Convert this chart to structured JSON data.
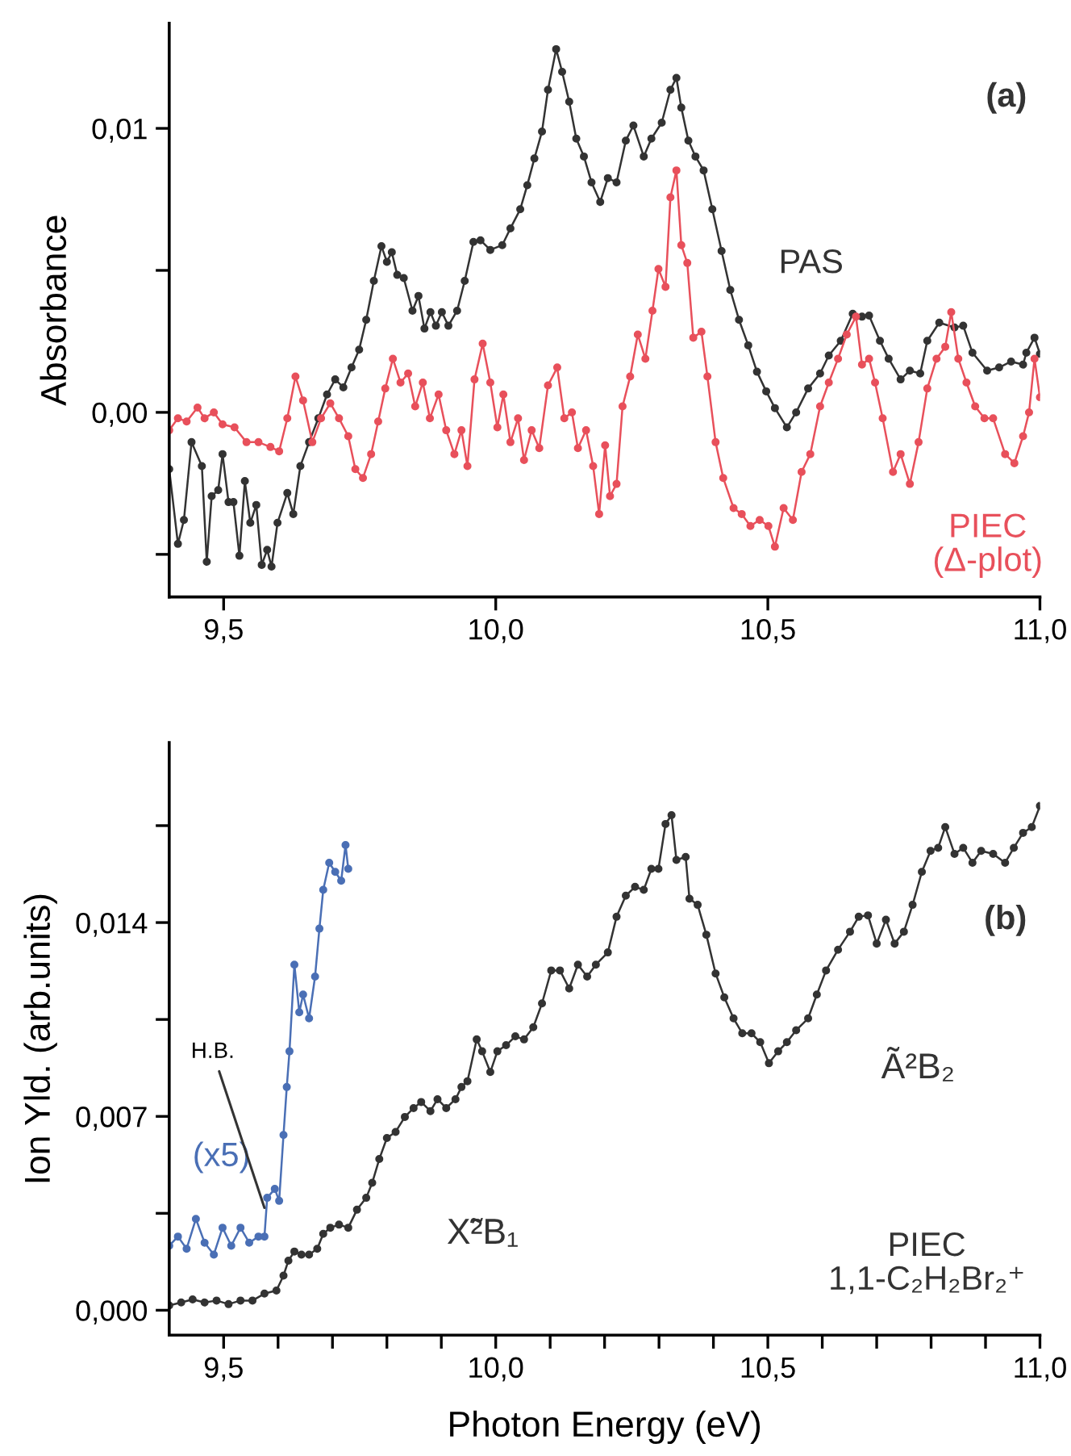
{
  "chart_data": [
    {
      "type": "line",
      "ylabel": "Absorbance",
      "xlim": [
        9.4,
        11.0
      ],
      "ylim": [
        -0.0065,
        0.0137
      ],
      "xticks": [
        {
          "value": 9.5,
          "label": "9,5"
        },
        {
          "value": 10.0,
          "label": "10,0"
        },
        {
          "value": 10.5,
          "label": "10,5"
        },
        {
          "value": 11.0,
          "label": "11,0"
        }
      ],
      "yticks": [
        {
          "value": -0.005,
          "label": null
        },
        {
          "value": 0.0,
          "label": "0,00"
        },
        {
          "value": 0.005,
          "label": null
        },
        {
          "value": 0.01,
          "label": "0,01"
        }
      ],
      "grid": false,
      "legend": false,
      "marker": "circle",
      "line_style": "solid",
      "annotations": [
        "(a)"
      ],
      "series": [
        {
          "name": "PAS",
          "color": "#333333",
          "x": [
            9.4,
            9.416,
            9.427,
            9.441,
            9.46,
            9.469,
            9.478,
            9.49,
            9.498,
            9.509,
            9.518,
            9.529,
            9.539,
            9.549,
            9.56,
            9.57,
            9.58,
            9.588,
            9.599,
            9.617,
            9.628,
            9.641,
            9.657,
            9.674,
            9.69,
            9.705,
            9.72,
            9.735,
            9.749,
            9.762,
            9.776,
            9.79,
            9.8,
            9.809,
            9.819,
            9.831,
            9.847,
            9.858,
            9.869,
            9.88,
            9.89,
            9.901,
            9.913,
            9.929,
            9.943,
            9.959,
            9.972,
            9.99,
            10.012,
            10.027,
            10.045,
            10.058,
            10.071,
            10.085,
            10.096,
            10.111,
            10.122,
            10.135,
            10.148,
            10.162,
            10.176,
            10.192,
            10.206,
            10.222,
            10.239,
            10.253,
            10.272,
            10.286,
            10.305,
            10.321,
            10.332,
            10.341,
            10.354,
            10.367,
            10.382,
            10.398,
            10.415,
            10.431,
            10.447,
            10.464,
            10.48,
            10.497,
            10.513,
            10.535,
            10.552,
            10.574,
            10.596,
            10.612,
            10.634,
            10.656,
            10.673,
            10.686,
            10.706,
            10.722,
            10.744,
            10.761,
            10.78,
            10.793,
            10.815,
            10.843,
            10.859,
            10.876,
            10.903,
            10.925,
            10.947,
            10.969,
            10.975,
            10.99,
            11.0
          ],
          "values": [
            -0.002,
            -0.00463,
            -0.00379,
            -0.00105,
            -0.00189,
            -0.00526,
            -0.00295,
            -0.00274,
            -0.00147,
            -0.00316,
            -0.00316,
            -0.00505,
            -0.00242,
            -0.00389,
            -0.00326,
            -0.00537,
            -0.00484,
            -0.00543,
            -0.00389,
            -0.00284,
            -0.00358,
            -0.00189,
            -0.00105,
            -0.00021,
            0.00063,
            0.00116,
            0.00088,
            0.00158,
            0.00221,
            0.00326,
            0.00463,
            0.00585,
            0.0053,
            0.00564,
            0.00484,
            0.00473,
            0.00358,
            0.0041,
            0.00295,
            0.00353,
            0.00305,
            0.00353,
            0.00305,
            0.00358,
            0.00463,
            0.006,
            0.00606,
            0.00572,
            0.00589,
            0.00648,
            0.00715,
            0.008,
            0.00894,
            0.00989,
            0.01136,
            0.01279,
            0.01199,
            0.01094,
            0.00964,
            0.00901,
            0.0081,
            0.00741,
            0.00825,
            0.0081,
            0.00957,
            0.0101,
            0.00901,
            0.00964,
            0.0102,
            0.01136,
            0.01178,
            0.01073,
            0.00957,
            0.00901,
            0.00852,
            0.00715,
            0.00568,
            0.00431,
            0.00326,
            0.00236,
            0.00143,
            0.00074,
            0.00015,
            -0.00053,
            0.0,
            0.00084,
            0.00137,
            0.002,
            0.00252,
            0.00347,
            0.00337,
            0.00341,
            0.00252,
            0.00189,
            0.00116,
            0.00147,
            0.00137,
            0.00252,
            0.00316,
            0.00299,
            0.00305,
            0.0021,
            0.00147,
            0.00158,
            0.00179,
            0.00168,
            0.0021,
            0.00263,
            0.00206
          ]
        },
        {
          "name": "PIEC\n(Δ-plot)",
          "color": "#e8505b",
          "x": [
            9.4,
            9.416,
            9.432,
            9.452,
            9.465,
            9.482,
            9.498,
            9.52,
            9.542,
            9.564,
            9.586,
            9.602,
            9.617,
            9.632,
            9.646,
            9.663,
            9.679,
            9.696,
            9.712,
            9.729,
            9.742,
            9.756,
            9.771,
            9.784,
            9.797,
            9.811,
            9.825,
            9.839,
            9.852,
            9.866,
            9.879,
            9.895,
            9.909,
            9.924,
            9.937,
            9.948,
            9.961,
            9.976,
            9.99,
            10.003,
            10.014,
            10.027,
            10.041,
            10.052,
            10.066,
            10.08,
            10.096,
            10.113,
            10.126,
            10.14,
            10.151,
            10.166,
            10.179,
            10.19,
            10.201,
            10.21,
            10.222,
            10.233,
            10.247,
            10.261,
            10.275,
            10.288,
            10.299,
            10.312,
            10.321,
            10.332,
            10.341,
            10.352,
            10.363,
            10.378,
            10.389,
            10.404,
            10.418,
            10.437,
            10.452,
            10.468,
            10.485,
            10.501,
            10.513,
            10.529,
            10.546,
            10.562,
            10.578,
            10.596,
            10.612,
            10.629,
            10.645,
            10.662,
            10.673,
            10.686,
            10.697,
            10.711,
            10.73,
            10.744,
            10.761,
            10.777,
            10.793,
            10.81,
            10.826,
            10.837,
            10.85,
            10.865,
            10.881,
            10.898,
            10.914,
            10.936,
            10.953,
            10.969,
            10.98,
            10.99,
            11.0
          ],
          "values": [
            -0.00063,
            -0.00021,
            -0.00032,
            0.00017,
            -0.00021,
            0.0,
            -0.00042,
            -0.00053,
            -0.00105,
            -0.00105,
            -0.00122,
            -0.00137,
            -0.00021,
            0.00126,
            0.00042,
            -0.00105,
            -0.00021,
            0.00032,
            -0.00021,
            -0.00084,
            -0.002,
            -0.00231,
            -0.00147,
            -0.00032,
            0.00084,
            0.00189,
            0.00105,
            0.00137,
            0.00021,
            0.00105,
            -0.00021,
            0.00063,
            -0.00063,
            -0.00147,
            -0.00063,
            -0.00189,
            0.00116,
            0.00242,
            0.00105,
            -0.00053,
            0.00063,
            -0.00105,
            -0.00021,
            -0.00168,
            -0.00063,
            -0.00126,
            0.00095,
            0.00158,
            -0.00021,
            0.0,
            -0.00126,
            -0.00063,
            -0.00189,
            -0.00358,
            -0.00116,
            -0.00295,
            -0.00252,
            0.00021,
            0.00126,
            0.00274,
            0.00189,
            0.00358,
            0.00505,
            0.00442,
            0.00757,
            0.00852,
            0.00589,
            0.00526,
            0.00263,
            0.00284,
            0.00126,
            -0.00105,
            -0.00231,
            -0.00337,
            -0.00358,
            -0.004,
            -0.00379,
            -0.004,
            -0.00473,
            -0.00337,
            -0.00379,
            -0.0021,
            -0.00147,
            0.00021,
            0.00105,
            0.00189,
            0.00274,
            0.00337,
            0.00168,
            0.00189,
            0.00105,
            -0.00021,
            -0.0021,
            -0.00147,
            -0.00252,
            -0.00105,
            0.00084,
            0.00189,
            0.00231,
            0.00353,
            0.00189,
            0.00105,
            0.00021,
            -0.00021,
            -0.00021,
            -0.00147,
            -0.00179,
            -0.00084,
            0.0,
            0.00189,
            0.00053
          ]
        }
      ]
    },
    {
      "type": "line",
      "xlabel": "Photon Energy (eV)",
      "ylabel": "Ion Yld. (arb.units)",
      "xlim": [
        9.4,
        11.0
      ],
      "ylim": [
        -0.0009,
        0.0205
      ],
      "xticks": [
        {
          "value": 9.5,
          "label": "9,5"
        },
        {
          "value": 9.6,
          "label": null
        },
        {
          "value": 9.7,
          "label": null
        },
        {
          "value": 9.8,
          "label": null
        },
        {
          "value": 9.9,
          "label": null
        },
        {
          "value": 10.0,
          "label": "10,0"
        },
        {
          "value": 10.1,
          "label": null
        },
        {
          "value": 10.2,
          "label": null
        },
        {
          "value": 10.3,
          "label": null
        },
        {
          "value": 10.4,
          "label": null
        },
        {
          "value": 10.5,
          "label": "10,5"
        },
        {
          "value": 10.6,
          "label": null
        },
        {
          "value": 10.7,
          "label": null
        },
        {
          "value": 10.8,
          "label": null
        },
        {
          "value": 10.9,
          "label": null
        },
        {
          "value": 11.0,
          "label": "11,0"
        }
      ],
      "yticks": [
        {
          "value": 0.0,
          "label": "0,000"
        },
        {
          "value": 0.0035,
          "label": null
        },
        {
          "value": 0.007,
          "label": "0,007"
        },
        {
          "value": 0.0105,
          "label": null
        },
        {
          "value": 0.014,
          "label": "0,014"
        },
        {
          "value": 0.0175,
          "label": null
        }
      ],
      "grid": false,
      "legend": false,
      "marker": "circle",
      "line_style": "solid",
      "annotations": [
        "(b)",
        {
          "text": "H.B.",
          "x": 9.575,
          "y": 0.0037
        },
        "X̃²B₁",
        "Ã²B₂"
      ],
      "series": [
        {
          "name": "PIEC\n1,1-C₂H₂Br₂⁺",
          "color": "#333333",
          "x": [
            9.4,
            9.422,
            9.443,
            9.465,
            9.487,
            9.509,
            9.531,
            9.553,
            9.575,
            9.597,
            9.61,
            9.619,
            9.63,
            9.643,
            9.657,
            9.672,
            9.683,
            9.696,
            9.712,
            9.729,
            9.745,
            9.762,
            9.773,
            9.786,
            9.8,
            9.816,
            9.833,
            9.849,
            9.863,
            9.88,
            9.893,
            9.909,
            9.926,
            9.937,
            9.948,
            9.965,
            9.975,
            9.99,
            10.003,
            10.019,
            10.036,
            10.052,
            10.069,
            10.085,
            10.102,
            10.118,
            10.135,
            10.151,
            10.168,
            10.184,
            10.206,
            10.222,
            10.239,
            10.256,
            10.272,
            10.286,
            10.299,
            10.312,
            10.323,
            10.332,
            10.349,
            10.356,
            10.371,
            10.387,
            10.404,
            10.42,
            10.437,
            10.453,
            10.47,
            10.486,
            10.502,
            10.519,
            10.535,
            10.552,
            10.574,
            10.59,
            10.607,
            10.629,
            10.651,
            10.667,
            10.684,
            10.7,
            10.717,
            10.733,
            10.75,
            10.766,
            10.783,
            10.799,
            10.813,
            10.826,
            10.843,
            10.859,
            10.876,
            10.892,
            10.914,
            10.936,
            10.952,
            10.969,
            10.985,
            11.0
          ],
          "values": [
            0.00017,
            0.00028,
            0.00039,
            0.00028,
            0.00035,
            0.00022,
            0.00035,
            0.00035,
            0.0006,
            0.00071,
            0.00125,
            0.00179,
            0.00212,
            0.00201,
            0.00201,
            0.00222,
            0.00276,
            0.00298,
            0.00309,
            0.00298,
            0.00363,
            0.00406,
            0.0046,
            0.00546,
            0.00622,
            0.00644,
            0.00698,
            0.0073,
            0.00752,
            0.00719,
            0.00762,
            0.0073,
            0.00762,
            0.00806,
            0.00827,
            0.00978,
            0.00935,
            0.0086,
            0.00935,
            0.00957,
            0.00989,
            0.00978,
            0.01022,
            0.01108,
            0.01227,
            0.01227,
            0.01162,
            0.01248,
            0.01205,
            0.01248,
            0.01292,
            0.01421,
            0.01497,
            0.01529,
            0.01518,
            0.01594,
            0.01594,
            0.01756,
            0.01788,
            0.01626,
            0.01637,
            0.01486,
            0.01464,
            0.01356,
            0.01216,
            0.0113,
            0.01054,
            0.01,
            0.01,
            0.00968,
            0.00892,
            0.00935,
            0.00968,
            0.01011,
            0.01054,
            0.0114,
            0.01227,
            0.01302,
            0.01367,
            0.01421,
            0.01426,
            0.01324,
            0.0141,
            0.01324,
            0.01367,
            0.01464,
            0.01583,
            0.01659,
            0.0167,
            0.01745,
            0.01648,
            0.0167,
            0.01616,
            0.01659,
            0.01648,
            0.01616,
            0.0167,
            0.01724,
            0.01745,
            0.01821
          ]
        },
        {
          "name": "(x5)",
          "color": "#4a6fb5",
          "x": [
            9.4,
            9.416,
            9.432,
            9.449,
            9.465,
            9.482,
            9.498,
            9.514,
            9.531,
            9.547,
            9.564,
            9.575,
            9.58,
            9.594,
            9.602,
            9.61,
            9.616,
            9.621,
            9.63,
            9.639,
            9.646,
            9.657,
            9.668,
            9.676,
            9.683,
            9.694,
            9.705,
            9.716,
            9.724,
            9.729
          ],
          "values": [
            0.00233,
            0.00266,
            0.00222,
            0.0033,
            0.00244,
            0.00201,
            0.00298,
            0.00233,
            0.00298,
            0.00244,
            0.00266,
            0.00266,
            0.00406,
            0.00438,
            0.00395,
            0.00633,
            0.00806,
            0.00935,
            0.01248,
            0.01076,
            0.0114,
            0.01054,
            0.01205,
            0.01378,
            0.01518,
            0.01616,
            0.01583,
            0.01551,
            0.0168,
            0.01594
          ]
        }
      ]
    }
  ]
}
